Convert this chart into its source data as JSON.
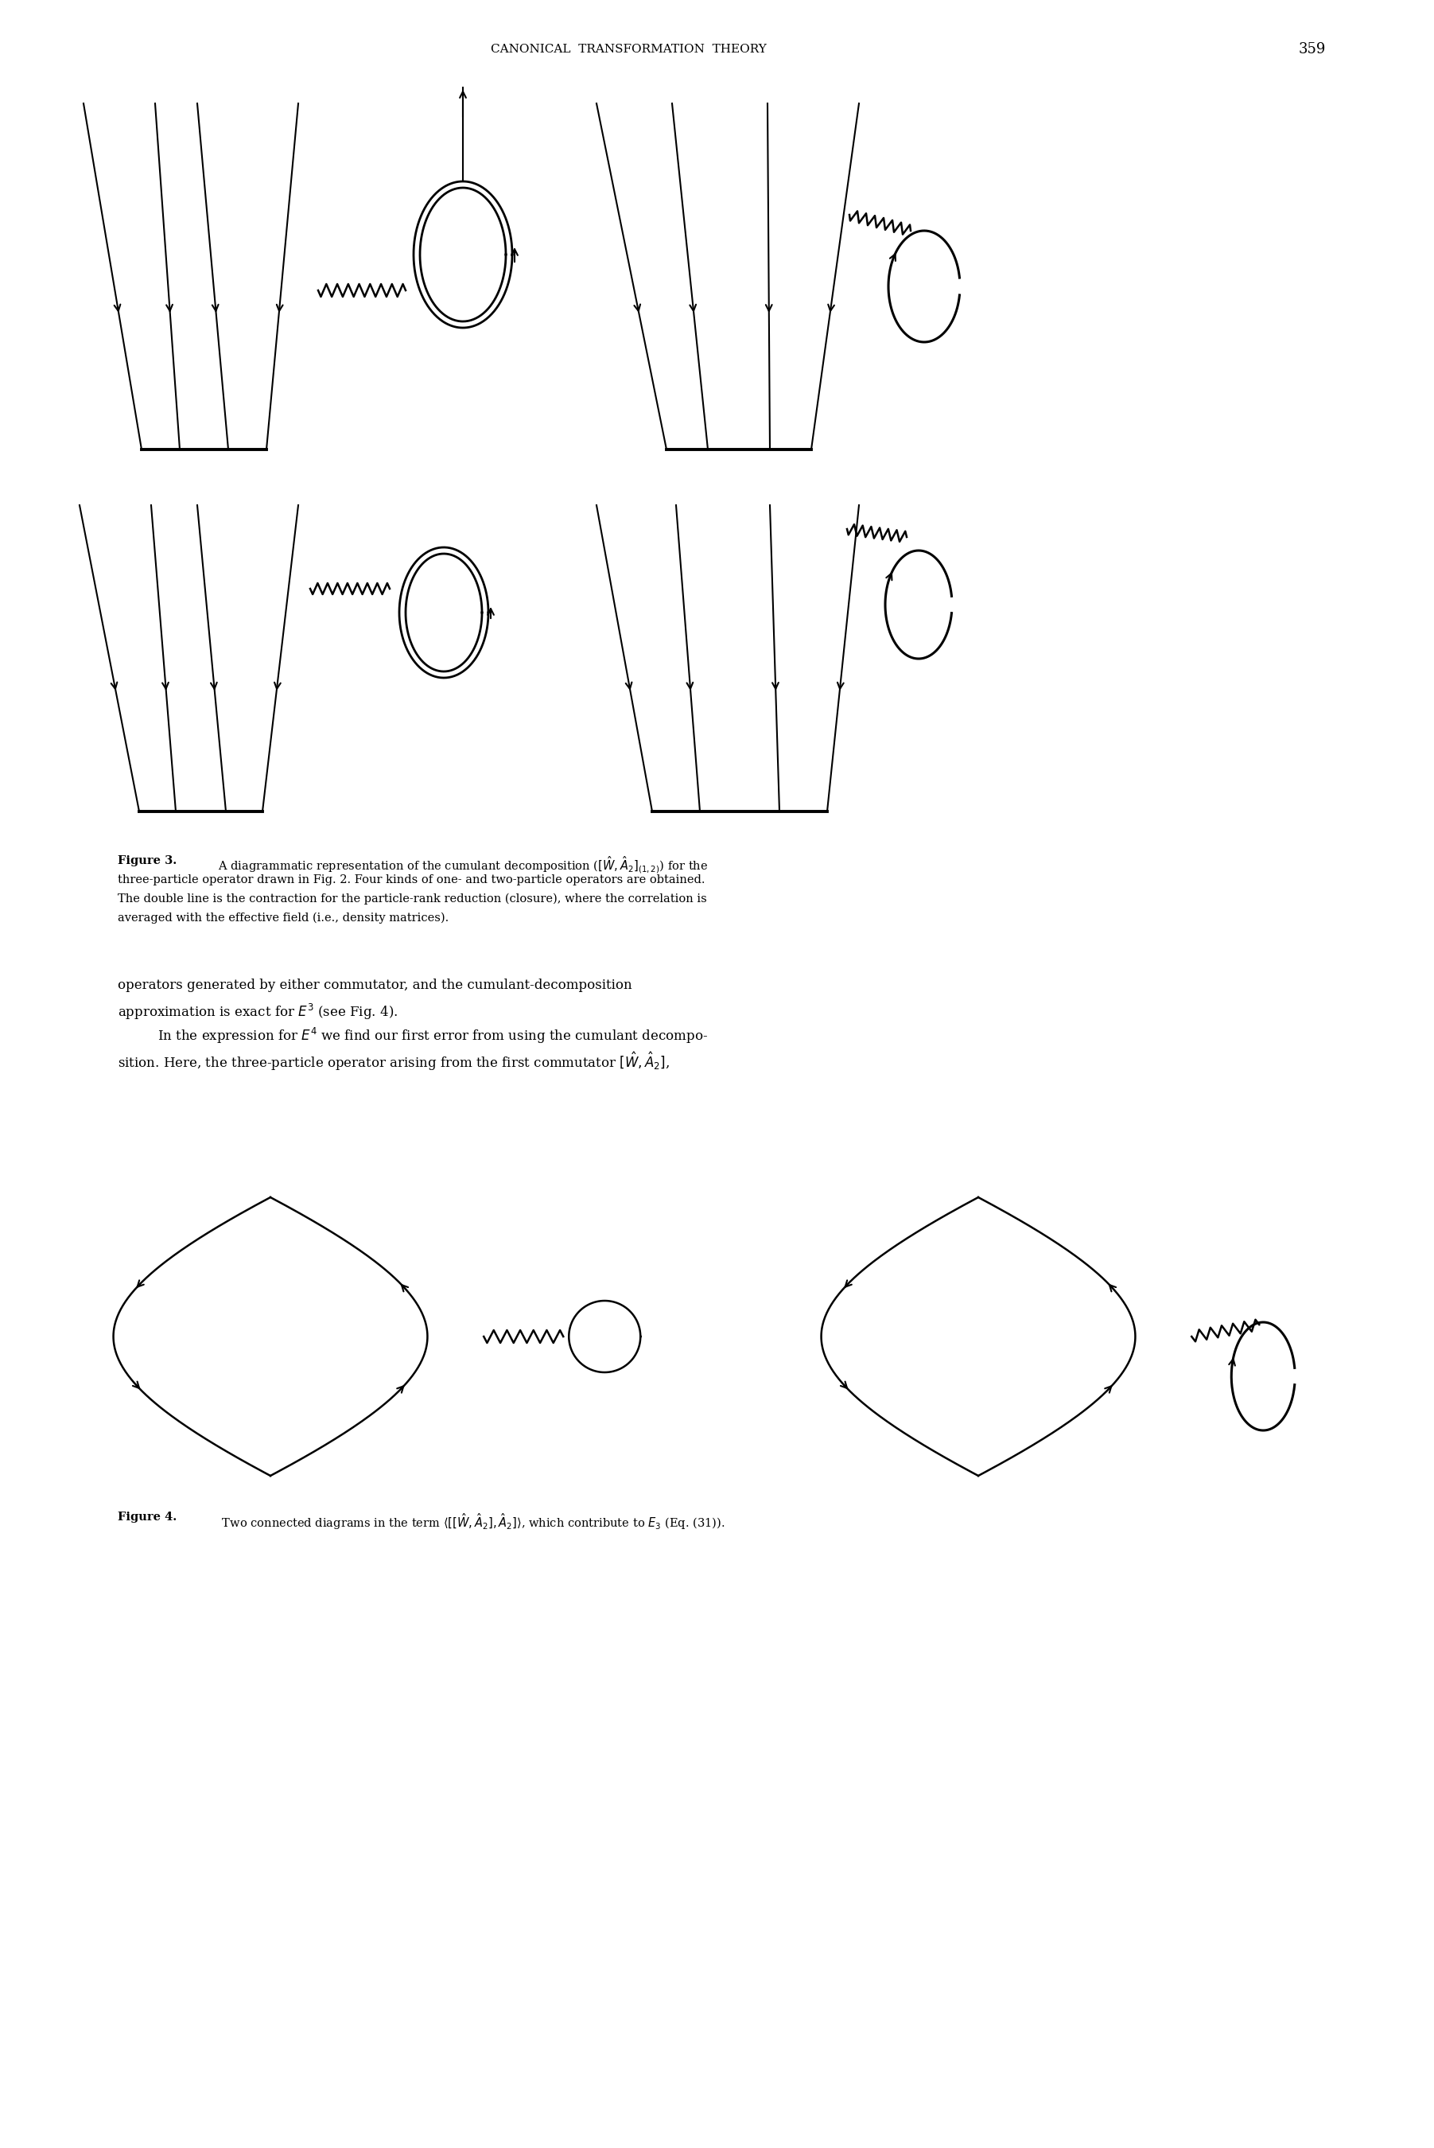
{
  "page_width": 18.03,
  "page_height": 27.0,
  "bg_color": "#ffffff",
  "header_text": "CANONICAL  TRANSFORMATION  THEORY",
  "header_page_num": "359",
  "fig3_caption_bold": "Figure 3.",
  "fig3_caption_rest": "  A diagrammatic representation of the cumulant decomposition for the three-particle operator drawn in Fig. 2. Four kinds of one- and two-particle operators are obtained. The double line is the contraction for the particle-rank reduction (closure), where the correlation is averaged with the effective field (i.e., density matrices).",
  "fig4_caption_bold": "Figure 4.",
  "fig4_caption_rest": "   Two connected diagrams in the term, which contribute to E3 (Eq. (31)).",
  "body_text_1": "operators generated by either commutator, and the cumulant-decomposition",
  "body_text_2": "approximation is exact for",
  "body_text_3": "(see Fig. 4).",
  "body_text_4": "In the expression for",
  "body_text_5": "we find our first error from using the cumulant decompo-",
  "body_text_6": "sition. Here, the three-particle operator arising from the first commutator"
}
